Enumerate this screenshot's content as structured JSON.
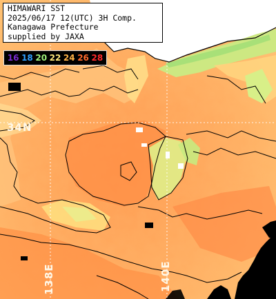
{
  "title": {
    "line1": "HIMAWARI SST",
    "line2": "2025/06/17 12(UTC) 3H Comp.",
    "line3": "Kanagawa Prefecture",
    "line4": "supplied by JAXA"
  },
  "legend": [
    {
      "label": "16",
      "color": "#7a2bd0"
    },
    {
      "label": "18",
      "color": "#2fa0ff"
    },
    {
      "label": "20",
      "color": "#9ff07a"
    },
    {
      "label": "22",
      "color": "#ffe87a"
    },
    {
      "label": "24",
      "color": "#ffb347"
    },
    {
      "label": "26",
      "color": "#ff6a2b"
    },
    {
      "label": "28",
      "color": "#ff2a2a"
    }
  ],
  "grid_labels": {
    "lat": "34N",
    "lon_left": "138E",
    "lon_right": "140E"
  },
  "colors": {
    "sea_warm": "#ff9f55",
    "sea_mid": "#ffb86a",
    "sea_cool": "#ffd88a",
    "coastal_cool": "#d8f08a",
    "land": "#ffffff",
    "cloud": "#000000"
  }
}
